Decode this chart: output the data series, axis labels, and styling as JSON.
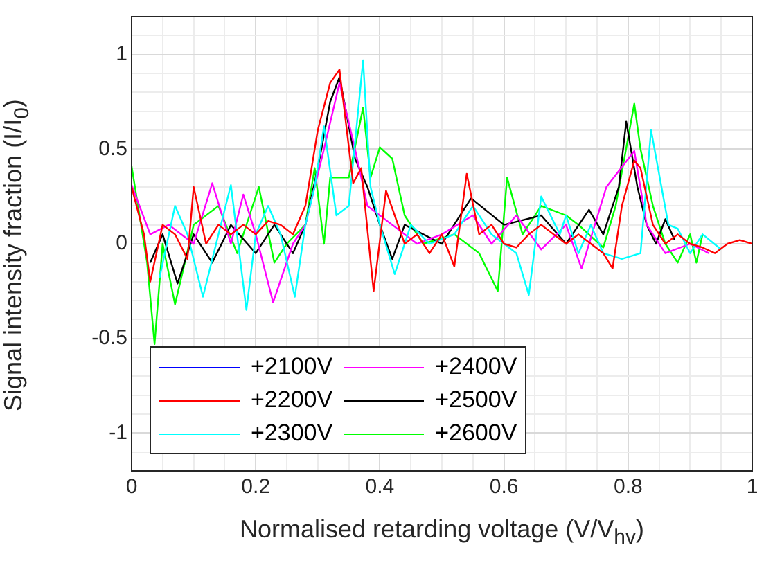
{
  "chart_data": {
    "type": "line",
    "xlabel": "Normalised retarding voltage (V/V$_{hv}$)",
    "ylabel": "Signal intensity fraction (I/I$_{0}$)",
    "xlim": [
      0,
      1
    ],
    "ylim": [
      -1.2,
      1.2
    ],
    "xticks": [
      0,
      {
        "value": 0.05,
        "label": null
      },
      {
        "value": 0.1,
        "label": null
      },
      {
        "value": 0.15,
        "label": null
      },
      0.2,
      {
        "value": 0.25,
        "label": null
      },
      {
        "value": 0.3,
        "label": null
      },
      {
        "value": 0.35,
        "label": null
      },
      0.4,
      {
        "value": 0.45,
        "label": null
      },
      {
        "value": 0.5,
        "label": null
      },
      {
        "value": 0.55,
        "label": null
      },
      0.6,
      {
        "value": 0.65,
        "label": null
      },
      {
        "value": 0.7,
        "label": null
      },
      {
        "value": 0.75,
        "label": null
      },
      0.8,
      {
        "value": 0.85,
        "label": null
      },
      {
        "value": 0.9,
        "label": null
      },
      {
        "value": 0.95,
        "label": null
      },
      1
    ],
    "yticks": [
      {
        "value": -1.2,
        "label": null
      },
      {
        "value": -1.1,
        "label": null
      },
      -1,
      {
        "value": -0.9,
        "label": null
      },
      {
        "value": -0.8,
        "label": null
      },
      {
        "value": -0.7,
        "label": null
      },
      {
        "value": -0.6,
        "label": null
      },
      -0.5,
      {
        "value": -0.4,
        "label": null
      },
      {
        "value": -0.3,
        "label": null
      },
      {
        "value": -0.2,
        "label": null
      },
      {
        "value": -0.1,
        "label": null
      },
      0,
      {
        "value": 0.1,
        "label": null
      },
      {
        "value": 0.2,
        "label": null
      },
      {
        "value": 0.3,
        "label": null
      },
      {
        "value": 0.4,
        "label": null
      },
      0.5,
      {
        "value": 0.6,
        "label": null
      },
      {
        "value": 0.7,
        "label": null
      },
      {
        "value": 0.8,
        "label": null
      },
      {
        "value": 0.9,
        "label": null
      },
      1,
      {
        "value": 1.1,
        "label": null
      },
      {
        "value": 1.2,
        "label": null
      }
    ],
    "grid": true,
    "legend": "bottom left",
    "marker": "none",
    "line_style": "solid",
    "series": [
      {
        "name": "+2100V",
        "color": "#0000ff"
      },
      {
        "name": "+2200V",
        "color": "#ff0000",
        "x": [
          0,
          0.02,
          0.03,
          0.05,
          0.07,
          0.09,
          0.1,
          0.12,
          0.14,
          0.16,
          0.18,
          0.2,
          0.22,
          0.24,
          0.26,
          0.28,
          0.3,
          0.32,
          0.335,
          0.357,
          0.37,
          0.39,
          0.41,
          0.44,
          0.46,
          0.48,
          0.5,
          0.52,
          0.54,
          0.56,
          0.58,
          0.6,
          0.62,
          0.64,
          0.66,
          0.68,
          0.7,
          0.72,
          0.74,
          0.76,
          0.775,
          0.79,
          0.81,
          0.82,
          0.84,
          0.86,
          0.88,
          0.9,
          0.92,
          0.94,
          0.96,
          0.98,
          1
        ],
        "values": [
          0.3,
          0.05,
          -0.2,
          0.1,
          0.05,
          -0.08,
          0.3,
          0,
          0.1,
          0.05,
          0.1,
          0.05,
          0.12,
          0.1,
          0.05,
          0.2,
          0.6,
          0.85,
          0.92,
          0.32,
          0.4,
          -0.25,
          0.28,
          0,
          0.05,
          -0.05,
          0.05,
          -0.12,
          0.37,
          0.05,
          0.1,
          0,
          -0.02,
          0.05,
          0.1,
          0.05,
          0,
          0.05,
          0,
          -0.05,
          -0.13,
          0.2,
          0.44,
          0.4,
          0.1,
          0,
          0.05,
          0,
          -0.02,
          -0.05,
          0,
          0.02,
          0
        ]
      },
      {
        "name": "+2300V",
        "color": "#00ffff",
        "x": [
          0.045,
          0.07,
          0.09,
          0.115,
          0.14,
          0.16,
          0.185,
          0.2,
          0.22,
          0.24,
          0.263,
          0.28,
          0.295,
          0.31,
          0.33,
          0.35,
          0.373,
          0.385,
          0.4,
          0.424,
          0.45,
          0.48,
          0.52,
          0.55,
          0.58,
          0.6,
          0.62,
          0.64,
          0.66,
          0.69,
          0.7,
          0.72,
          0.74,
          0.76,
          0.79,
          0.82,
          0.837,
          0.865,
          0.88,
          0.9,
          0.92,
          0.95
        ],
        "values": [
          -0.18,
          0.2,
          0.05,
          -0.28,
          0.05,
          0.31,
          -0.35,
          0.05,
          0.2,
          0.05,
          -0.28,
          0.1,
          0.3,
          0.62,
          0.15,
          0.2,
          0.97,
          0.3,
          0.1,
          -0.16,
          0.1,
          0,
          0.05,
          0.2,
          0.05,
          0,
          -0.05,
          -0.27,
          0.25,
          0.05,
          0.15,
          -0.05,
          0.1,
          -0.05,
          -0.08,
          -0.05,
          0.6,
          0.1,
          0.08,
          -0.05,
          0.05,
          -0.03
        ]
      },
      {
        "name": "+2400V",
        "color": "#ff00ff",
        "x": [
          0,
          0.03,
          0.06,
          0.1,
          0.13,
          0.16,
          0.18,
          0.2,
          0.228,
          0.26,
          0.28,
          0.31,
          0.335,
          0.36,
          0.38,
          0.42,
          0.46,
          0.5,
          0.55,
          0.58,
          0.62,
          0.66,
          0.7,
          0.725,
          0.765,
          0.81,
          0.83,
          0.86,
          0.9,
          0.93
        ],
        "values": [
          0.31,
          0.05,
          0.1,
          0,
          0.32,
          0,
          0.26,
          0.05,
          -0.31,
          0,
          0.1,
          0.5,
          0.85,
          0.5,
          0.2,
          0.1,
          0,
          0.05,
          0.15,
          0,
          0.15,
          -0.03,
          0.1,
          -0.13,
          0.3,
          0.49,
          0.1,
          -0.05,
          0,
          -0.05
        ]
      },
      {
        "name": "+2500V",
        "color": "#000000",
        "x": [
          0.03,
          0.05,
          0.074,
          0.1,
          0.13,
          0.16,
          0.2,
          0.23,
          0.26,
          0.28,
          0.3,
          0.32,
          0.335,
          0.36,
          0.38,
          0.4,
          0.42,
          0.44,
          0.47,
          0.5,
          0.547,
          0.6,
          0.66,
          0.7,
          0.737,
          0.76,
          0.785,
          0.797,
          0.815,
          0.83,
          0.845,
          0.86,
          0.875
        ],
        "values": [
          -0.1,
          0.05,
          -0.21,
          0.05,
          -0.1,
          0.1,
          -0.05,
          0.1,
          -0.05,
          0.1,
          0.4,
          0.75,
          0.88,
          0.45,
          0.3,
          0.1,
          -0.08,
          0.1,
          0.05,
          0,
          0.24,
          0.1,
          0.15,
          0,
          0.18,
          0.05,
          0.3,
          0.645,
          0.3,
          0.1,
          0,
          0.13,
          0.02
        ]
      },
      {
        "name": "+2600V",
        "color": "#00ff00",
        "x": [
          0,
          0.025,
          0.037,
          0.05,
          0.07,
          0.1,
          0.14,
          0.17,
          0.205,
          0.23,
          0.25,
          0.28,
          0.295,
          0.31,
          0.32,
          0.35,
          0.373,
          0.385,
          0.4,
          0.42,
          0.44,
          0.47,
          0.52,
          0.56,
          0.59,
          0.605,
          0.63,
          0.66,
          0.7,
          0.72,
          0.76,
          0.78,
          0.81,
          0.82,
          0.84,
          0.86,
          0.88,
          0.9,
          0.91,
          0.92
        ],
        "values": [
          0.41,
          -0.1,
          -0.53,
          0,
          -0.32,
          0.1,
          0.2,
          -0.05,
          0.3,
          -0.1,
          0,
          0.1,
          0.4,
          0,
          0.35,
          0.35,
          0.72,
          0.35,
          0.51,
          0.45,
          0.15,
          0,
          0.05,
          -0.05,
          -0.25,
          0.35,
          0.05,
          0.2,
          0.15,
          0.1,
          -0.02,
          0.2,
          0.74,
          0.5,
          0.2,
          0,
          -0.1,
          0.05,
          -0.1,
          0.05
        ]
      }
    ]
  }
}
